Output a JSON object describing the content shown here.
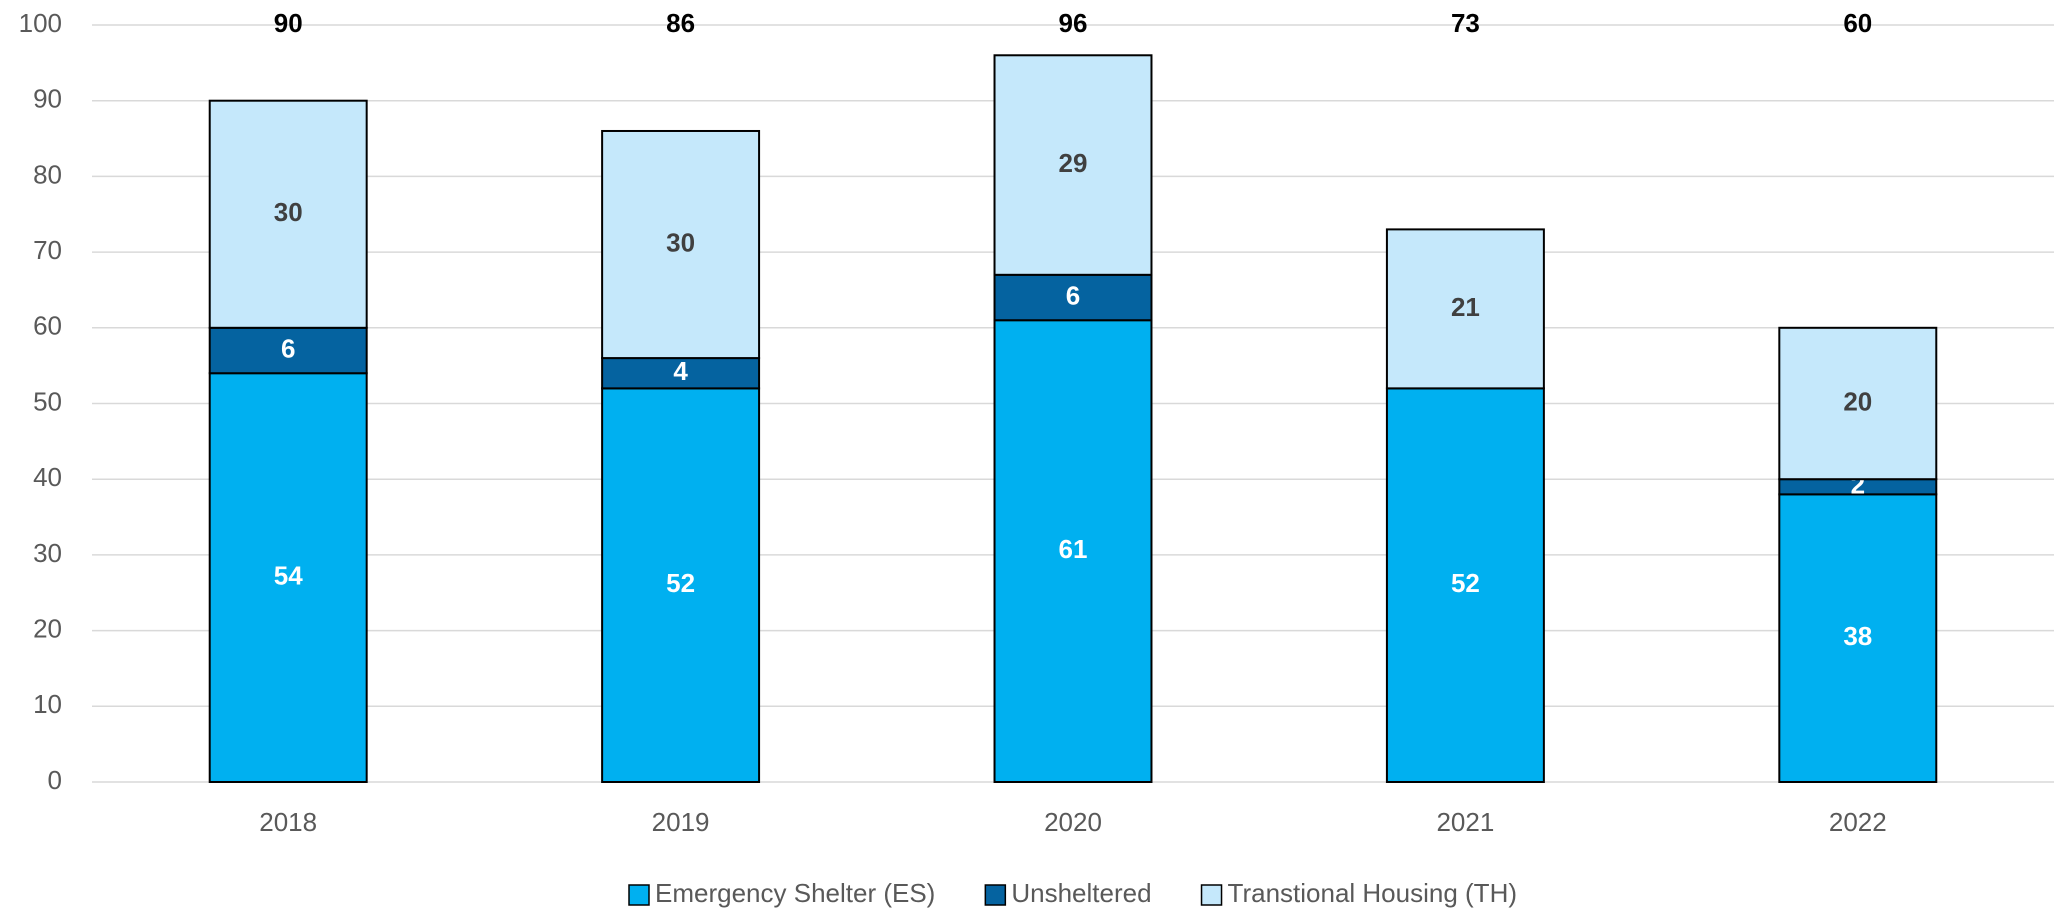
{
  "chart_data": {
    "type": "stacked_bar",
    "categories": [
      "2018",
      "2019",
      "2020",
      "2021",
      "2022"
    ],
    "series": [
      {
        "name": "Emergency Shelter (ES)",
        "color": "#00b0f0",
        "label_color": "#ffffff",
        "values": [
          54,
          52,
          61,
          52,
          38
        ]
      },
      {
        "name": "Unsheltered",
        "color": "#0563a0",
        "label_color": "#ffffff",
        "values": [
          6,
          4,
          6,
          0,
          2
        ]
      },
      {
        "name": "Transtional Housing (TH)",
        "color": "#c5e8fb",
        "label_color": "#404040",
        "values": [
          30,
          30,
          29,
          21,
          20
        ]
      }
    ],
    "totals": [
      90,
      86,
      96,
      73,
      60
    ],
    "ylim": [
      0,
      100
    ],
    "yticks": [
      0,
      10,
      20,
      30,
      40,
      50,
      60,
      70,
      80,
      90,
      100
    ],
    "grid": true,
    "legend": "bottom"
  }
}
